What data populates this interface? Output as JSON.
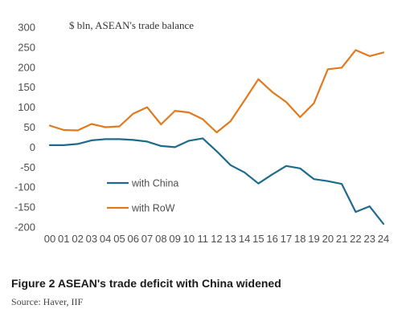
{
  "figure": {
    "title": "Figure 2  ASEAN's trade deficit with China widened",
    "source": "Source: Haver, IIF"
  },
  "chart_data": {
    "type": "line",
    "ylabel": "$ bln, ASEAN's trade balance",
    "xlabel": "",
    "categories": [
      "00",
      "01",
      "02",
      "03",
      "04",
      "05",
      "06",
      "07",
      "08",
      "09",
      "10",
      "11",
      "12",
      "13",
      "14",
      "15",
      "16",
      "17",
      "18",
      "19",
      "20",
      "21",
      "22",
      "23",
      "24"
    ],
    "ylim": [
      -200,
      300
    ],
    "yticks": [
      300,
      250,
      200,
      150,
      100,
      50,
      0,
      -50,
      -100,
      -150,
      -200
    ],
    "grid": false,
    "legend_position": "lower-left",
    "series": [
      {
        "name": "with China",
        "color": "#1d6b8c",
        "values": [
          5,
          5,
          8,
          17,
          20,
          20,
          18,
          14,
          3,
          0,
          16,
          22,
          -10,
          -45,
          -63,
          -91,
          -68,
          -47,
          -53,
          -80,
          -85,
          -92,
          -162,
          -148,
          -192
        ]
      },
      {
        "name": "with RoW",
        "color": "#e07a1f",
        "values": [
          54,
          43,
          42,
          58,
          50,
          52,
          84,
          100,
          57,
          91,
          87,
          70,
          37,
          65,
          117,
          170,
          138,
          113,
          75,
          110,
          195,
          199,
          243,
          228,
          237
        ]
      }
    ]
  }
}
